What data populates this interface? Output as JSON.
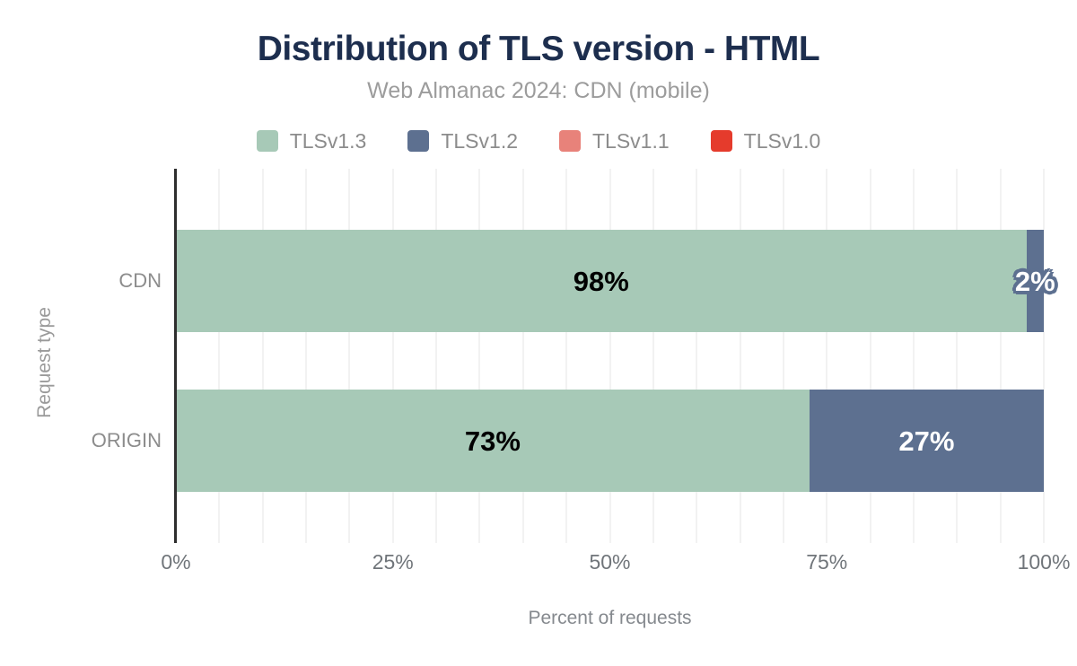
{
  "title": "Distribution of TLS version - HTML",
  "subtitle": "Web Almanac 2024: CDN (mobile)",
  "chart_data": {
    "type": "bar",
    "orientation": "horizontal",
    "stacked": true,
    "title": "Distribution of TLS version - HTML",
    "subtitle": "Web Almanac 2024: CDN (mobile)",
    "categories": [
      "CDN",
      "ORIGIN"
    ],
    "series": [
      {
        "name": "TLSv1.3",
        "color": "#a7c9b7",
        "label_color": "#000000",
        "values": [
          98,
          73
        ],
        "labels": [
          "98%",
          "73%"
        ]
      },
      {
        "name": "TLSv1.2",
        "color": "#5d7090",
        "label_color": "#ffffff",
        "values": [
          2,
          27
        ],
        "labels": [
          "2%",
          "27%"
        ]
      },
      {
        "name": "TLSv1.1",
        "color": "#e8827a",
        "label_color": "#ffffff",
        "values": [
          0,
          0
        ],
        "labels": [
          "",
          ""
        ]
      },
      {
        "name": "TLSv1.0",
        "color": "#e53b2c",
        "label_color": "#ffffff",
        "values": [
          0,
          0
        ],
        "labels": [
          "",
          ""
        ]
      }
    ],
    "xlabel": "Percent of requests",
    "ylabel": "Request type",
    "xlim": [
      0,
      100
    ],
    "xticks": [
      {
        "value": 0,
        "label": "0%"
      },
      {
        "value": 25,
        "label": "25%"
      },
      {
        "value": 50,
        "label": "50%"
      },
      {
        "value": 75,
        "label": "75%"
      },
      {
        "value": 100,
        "label": "100%"
      }
    ],
    "grid": true,
    "grid_interval": 5,
    "legend_position": "top"
  },
  "colors": {
    "title": "#1d2e4e",
    "subtitle": "#9c9c9c",
    "legend_text": "#8c8c8c",
    "tick_text": "#70757a",
    "axis_title_text": "#85898e",
    "axis_line": "#2e2e2e",
    "gridline": "#f2f2f2",
    "background": "#ffffff",
    "small_label_outline": "#5d7090"
  }
}
